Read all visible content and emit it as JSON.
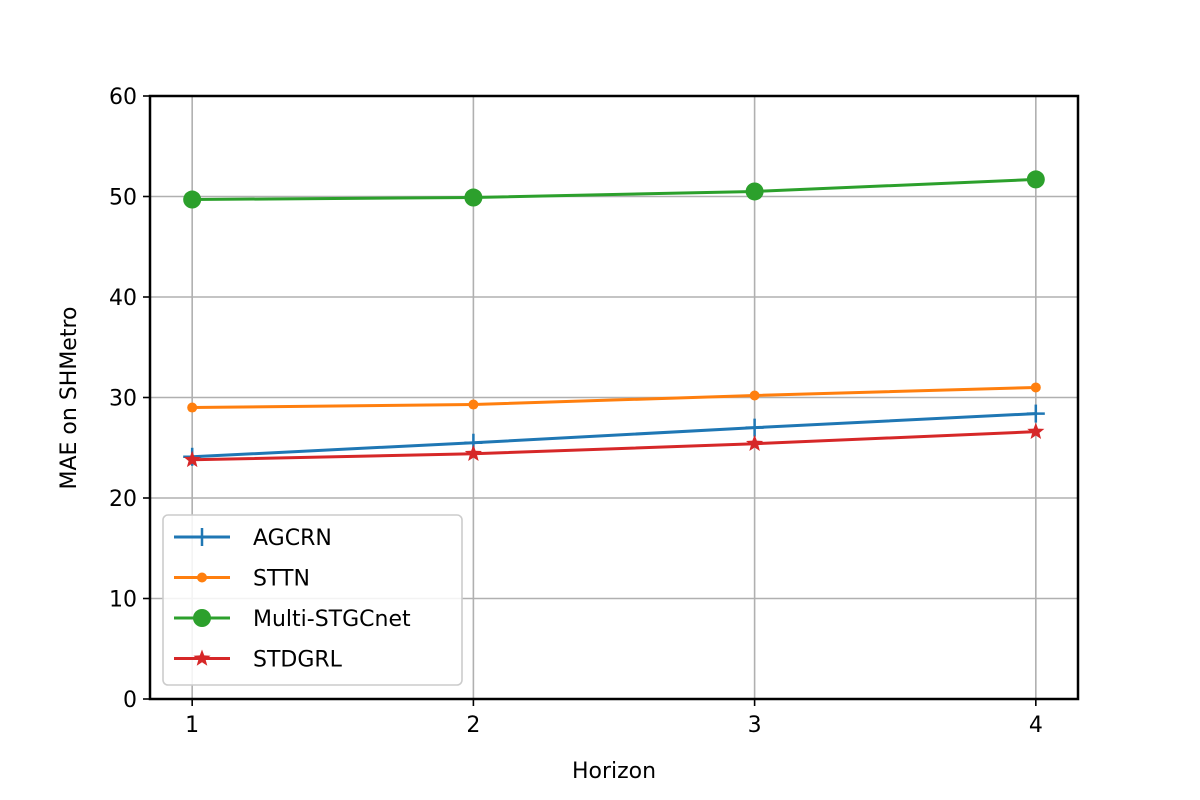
{
  "chart_data": {
    "type": "line",
    "title": "",
    "xlabel": "Horizon",
    "ylabel": "MAE on SHMetro",
    "x": [
      1,
      2,
      3,
      4
    ],
    "xlim": [
      0.85,
      4.15
    ],
    "ylim": [
      0,
      60
    ],
    "xticks": [
      "1",
      "2",
      "3",
      "4"
    ],
    "yticks": [
      "0",
      "10",
      "20",
      "30",
      "40",
      "50",
      "60"
    ],
    "grid": true,
    "legend_position": "bottom-left",
    "series": [
      {
        "name": "AGCRN",
        "values": [
          24.1,
          25.5,
          27.0,
          28.4
        ],
        "color": "#1f77b4",
        "marker": "plus"
      },
      {
        "name": "STTN",
        "values": [
          29.0,
          29.3,
          30.2,
          31.0
        ],
        "color": "#ff7f0e",
        "marker": "small-circle"
      },
      {
        "name": "Multi-STGCnet",
        "values": [
          49.7,
          49.9,
          50.5,
          51.7
        ],
        "color": "#2ca02c",
        "marker": "large-circle"
      },
      {
        "name": "STDGRL",
        "values": [
          23.8,
          24.4,
          25.4,
          26.6
        ],
        "color": "#d62728",
        "marker": "star"
      }
    ]
  }
}
